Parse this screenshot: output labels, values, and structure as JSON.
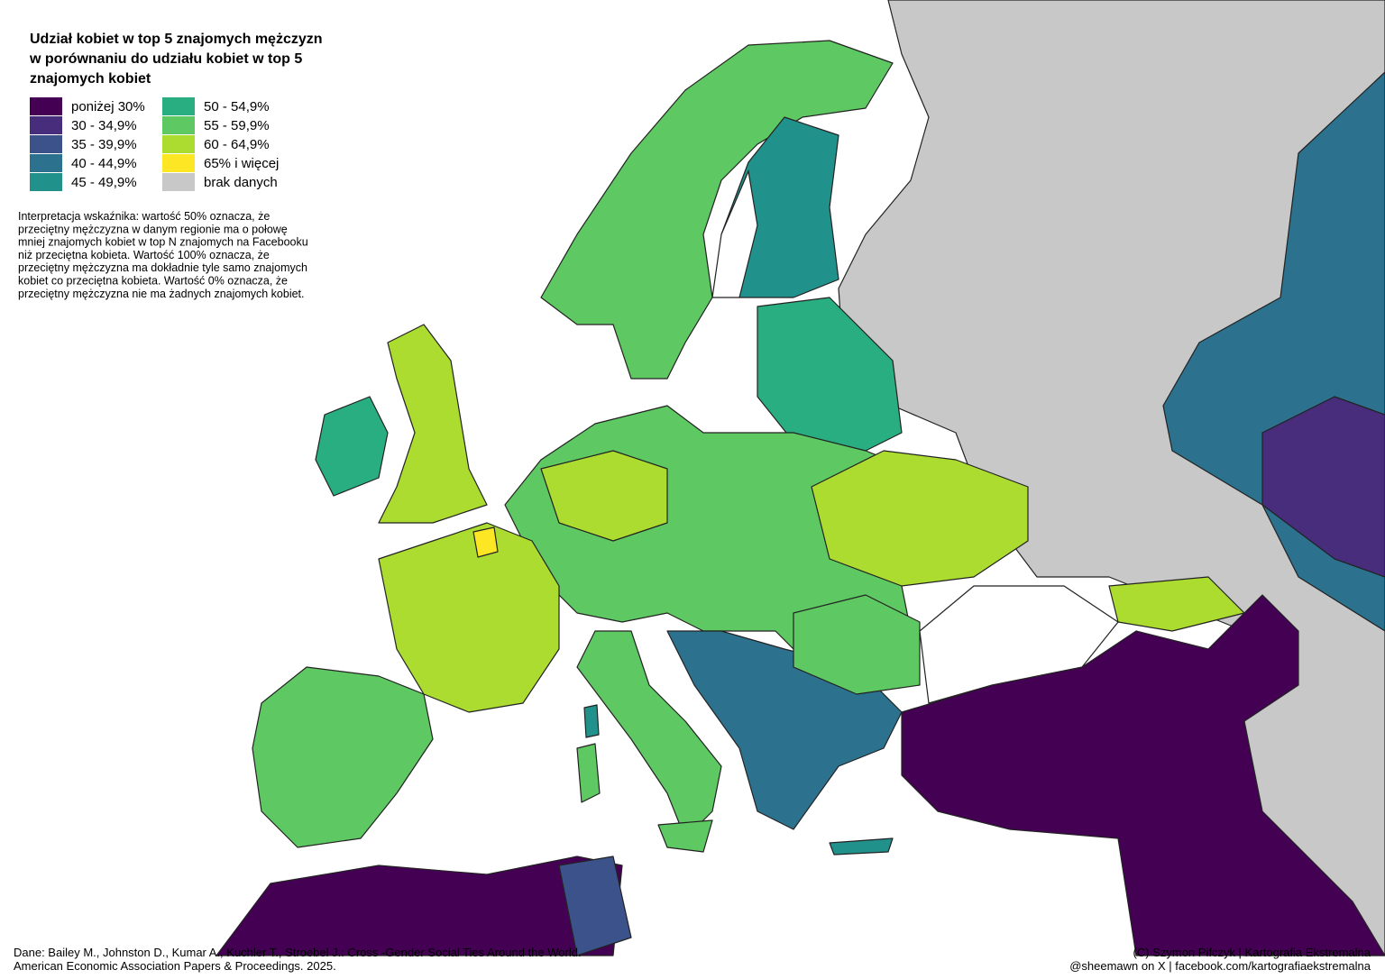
{
  "title": [
    "Udział kobiet w top 5 znajomych mężczyzn",
    "w porównaniu do udziału kobiet w top 5",
    "znajomych kobiet"
  ],
  "legend": {
    "items": [
      {
        "label": "poniżej 30%",
        "color": "#440154"
      },
      {
        "label": "30 - 34,9%",
        "color": "#472d7b"
      },
      {
        "label": "35 - 39,9%",
        "color": "#3b528b"
      },
      {
        "label": "40 - 44,9%",
        "color": "#2c728e"
      },
      {
        "label": "45 - 49,9%",
        "color": "#21918c"
      },
      {
        "label": "50 - 54,9%",
        "color": "#28ae80"
      },
      {
        "label": "55 - 59,9%",
        "color": "#5ec962"
      },
      {
        "label": "60 - 64,9%",
        "color": "#addc30"
      },
      {
        "label": "65% i więcej",
        "color": "#fde725"
      },
      {
        "label": "brak danych",
        "color": "#c8c8c8"
      }
    ]
  },
  "interpretation": [
    "Interpretacja wskaźnika: wartość 50% oznacza, że",
    "przeciętny mężczyzna w danym regionie ma o połowę",
    "mniej znajomych kobiet w top N znajomych na Facebooku",
    "niż przeciętna kobieta.  Wartość 100% oznacza, że",
    "przeciętny mężczyzna ma dokładnie tyle samo znajomych",
    "kobiet co przeciętna kobieta. Wartość 0% oznacza, że",
    "przeciętny mężczyzna nie ma żadnych znajomych kobiet."
  ],
  "source": [
    "Dane: Bailey M., Johnston D., Kumar A., Kuchler T., Stroebel J.: Cross -Gender Social Ties Around the World.",
    "American Economic Association Papers & Proceedings. 2025."
  ],
  "credits": [
    "(C) Szymon Pifczyk | Kartografia Ekstremalna",
    "@sheemawn on X | facebook.com/kartografiaekstremalna"
  ]
}
